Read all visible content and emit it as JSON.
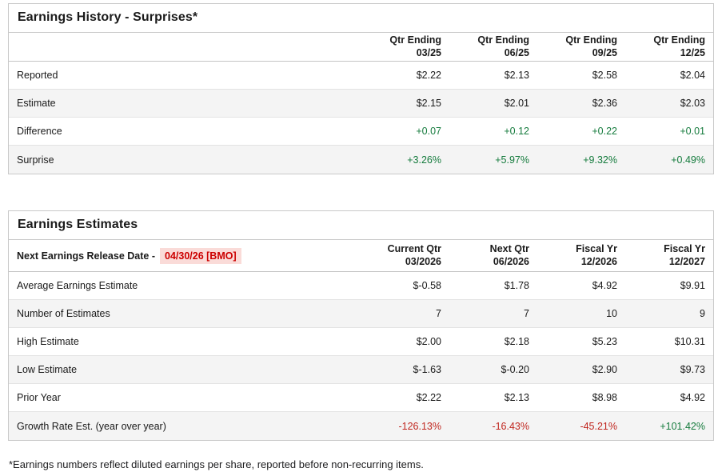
{
  "colors": {
    "positive": "#157b3d",
    "negative": "#c0261f",
    "date-text": "#cc0000",
    "date-bg": "#fadbd8"
  },
  "history": {
    "title": "Earnings History - Surprises*",
    "columns": [
      {
        "line1": "Qtr Ending",
        "line2": "03/25"
      },
      {
        "line1": "Qtr Ending",
        "line2": "06/25"
      },
      {
        "line1": "Qtr Ending",
        "line2": "09/25"
      },
      {
        "line1": "Qtr Ending",
        "line2": "12/25"
      }
    ],
    "rows": [
      {
        "label": "Reported",
        "values": [
          "$2.22",
          "$2.13",
          "$2.58",
          "$2.04"
        ]
      },
      {
        "label": "Estimate",
        "values": [
          "$2.15",
          "$2.01",
          "$2.36",
          "$2.03"
        ]
      },
      {
        "label": "Difference",
        "values": [
          "+0.07",
          "+0.12",
          "+0.22",
          "+0.01"
        ]
      },
      {
        "label": "Surprise",
        "values": [
          "+3.26%",
          "+5.97%",
          "+9.32%",
          "+0.49%"
        ]
      }
    ]
  },
  "estimates": {
    "title": "Earnings Estimates",
    "release_label": "Next Earnings Release Date -",
    "release_date": "04/30/26 [BMO]",
    "columns": [
      {
        "line1": "Current Qtr",
        "line2": "03/2026"
      },
      {
        "line1": "Next Qtr",
        "line2": "06/2026"
      },
      {
        "line1": "Fiscal Yr",
        "line2": "12/2026"
      },
      {
        "line1": "Fiscal Yr",
        "line2": "12/2027"
      }
    ],
    "rows": [
      {
        "label": "Average Earnings Estimate",
        "values": [
          "$-0.58",
          "$1.78",
          "$4.92",
          "$9.91"
        ]
      },
      {
        "label": "Number of Estimates",
        "values": [
          "7",
          "7",
          "10",
          "9"
        ]
      },
      {
        "label": "High Estimate",
        "values": [
          "$2.00",
          "$2.18",
          "$5.23",
          "$10.31"
        ]
      },
      {
        "label": "Low Estimate",
        "values": [
          "$-1.63",
          "$-0.20",
          "$2.90",
          "$9.73"
        ]
      },
      {
        "label": "Prior Year",
        "values": [
          "$2.22",
          "$2.13",
          "$8.98",
          "$4.92"
        ]
      },
      {
        "label": "Growth Rate Est. (year over year)",
        "values": [
          "-126.13%",
          "-16.43%",
          "-45.21%",
          "+101.42%"
        ]
      }
    ]
  },
  "footnote": "*Earnings numbers reflect diluted earnings per share, reported before non-recurring items."
}
